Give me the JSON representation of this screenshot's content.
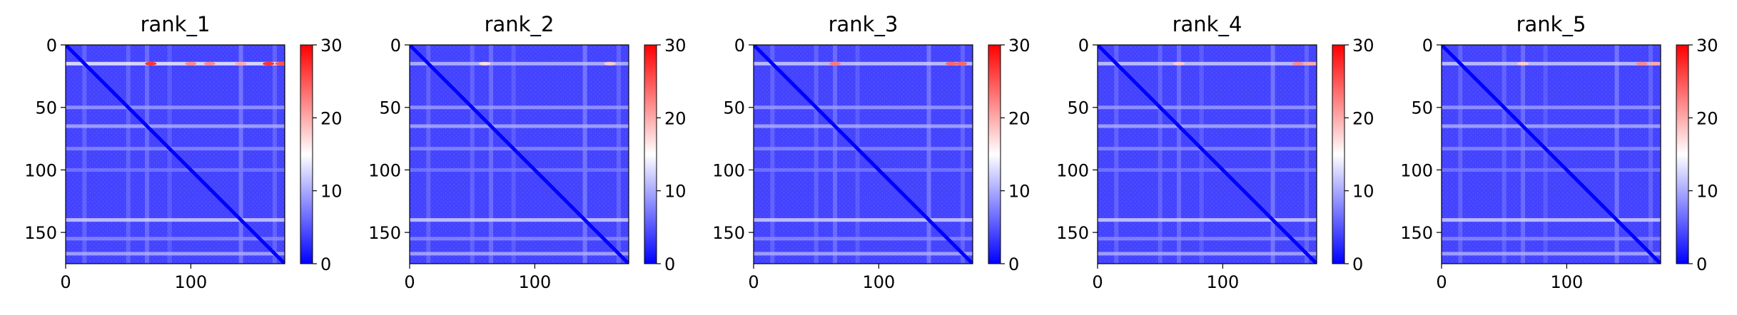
{
  "figure": {
    "colormap": {
      "low": "#0000ff",
      "mid": "#ffffff",
      "high": "#ff0000"
    }
  },
  "chart_data": [
    {
      "type": "heatmap",
      "title": "rank_1",
      "xlabel": "",
      "ylabel": "",
      "xlim": [
        0,
        175
      ],
      "ylim": [
        175,
        0
      ],
      "xticks": [
        0,
        100
      ],
      "yticks": [
        0,
        50,
        100,
        150
      ],
      "colorbar": {
        "range": [
          0,
          30
        ],
        "ticks": [
          0,
          10,
          20,
          30
        ]
      },
      "diagonal_value": 0,
      "background_value": 4,
      "row_bands": [
        {
          "y": 15,
          "value": 14
        },
        {
          "y": 50,
          "value": 9
        },
        {
          "y": 65,
          "value": 10
        },
        {
          "y": 83,
          "value": 8
        },
        {
          "y": 100,
          "value": 7
        },
        {
          "y": 140,
          "value": 12
        },
        {
          "y": 155,
          "value": 8
        },
        {
          "y": 167,
          "value": 10
        }
      ],
      "col_bands": [
        {
          "x": 15,
          "value": 8
        },
        {
          "x": 50,
          "value": 8
        },
        {
          "x": 65,
          "value": 9
        },
        {
          "x": 83,
          "value": 7
        },
        {
          "x": 140,
          "value": 10
        },
        {
          "x": 167,
          "value": 8
        }
      ],
      "hotspots": [
        {
          "x": 68,
          "y": 15,
          "value": 27
        },
        {
          "x": 100,
          "y": 15,
          "value": 22
        },
        {
          "x": 115,
          "y": 15,
          "value": 22
        },
        {
          "x": 140,
          "y": 15,
          "value": 20
        },
        {
          "x": 162,
          "y": 15,
          "value": 27
        },
        {
          "x": 172,
          "y": 15,
          "value": 25
        }
      ]
    },
    {
      "type": "heatmap",
      "title": "rank_2",
      "xlabel": "",
      "ylabel": "",
      "xlim": [
        0,
        175
      ],
      "ylim": [
        175,
        0
      ],
      "xticks": [
        0,
        100
      ],
      "yticks": [
        0,
        50,
        100,
        150
      ],
      "colorbar": {
        "range": [
          0,
          30
        ],
        "ticks": [
          0,
          10,
          20,
          30
        ]
      },
      "diagonal_value": 0,
      "background_value": 4,
      "row_bands": [
        {
          "y": 15,
          "value": 11
        },
        {
          "y": 50,
          "value": 9
        },
        {
          "y": 65,
          "value": 10
        },
        {
          "y": 83,
          "value": 8
        },
        {
          "y": 100,
          "value": 7
        },
        {
          "y": 140,
          "value": 12
        },
        {
          "y": 155,
          "value": 8
        },
        {
          "y": 167,
          "value": 10
        }
      ],
      "col_bands": [
        {
          "x": 15,
          "value": 8
        },
        {
          "x": 50,
          "value": 8
        },
        {
          "x": 65,
          "value": 9
        },
        {
          "x": 83,
          "value": 7
        },
        {
          "x": 140,
          "value": 10
        },
        {
          "x": 167,
          "value": 8
        }
      ],
      "hotspots": [
        {
          "x": 60,
          "y": 15,
          "value": 17
        },
        {
          "x": 160,
          "y": 15,
          "value": 18
        }
      ]
    },
    {
      "type": "heatmap",
      "title": "rank_3",
      "xlabel": "",
      "ylabel": "",
      "xlim": [
        0,
        175
      ],
      "ylim": [
        175,
        0
      ],
      "xticks": [
        0,
        100
      ],
      "yticks": [
        0,
        50,
        100,
        150
      ],
      "colorbar": {
        "range": [
          0,
          30
        ],
        "ticks": [
          0,
          10,
          20,
          30
        ]
      },
      "diagonal_value": 0,
      "background_value": 4,
      "row_bands": [
        {
          "y": 15,
          "value": 12
        },
        {
          "y": 50,
          "value": 9
        },
        {
          "y": 65,
          "value": 10
        },
        {
          "y": 83,
          "value": 8
        },
        {
          "y": 100,
          "value": 7
        },
        {
          "y": 140,
          "value": 12
        },
        {
          "y": 155,
          "value": 8
        },
        {
          "y": 167,
          "value": 10
        }
      ],
      "col_bands": [
        {
          "x": 15,
          "value": 8
        },
        {
          "x": 50,
          "value": 8
        },
        {
          "x": 65,
          "value": 9
        },
        {
          "x": 83,
          "value": 7
        },
        {
          "x": 140,
          "value": 10
        },
        {
          "x": 167,
          "value": 8
        }
      ],
      "hotspots": [
        {
          "x": 65,
          "y": 15,
          "value": 23
        },
        {
          "x": 158,
          "y": 15,
          "value": 24
        },
        {
          "x": 166,
          "y": 15,
          "value": 24
        }
      ]
    },
    {
      "type": "heatmap",
      "title": "rank_4",
      "xlabel": "",
      "ylabel": "",
      "xlim": [
        0,
        175
      ],
      "ylim": [
        175,
        0
      ],
      "xticks": [
        0,
        100
      ],
      "yticks": [
        0,
        50,
        100,
        150
      ],
      "colorbar": {
        "range": [
          0,
          30
        ],
        "ticks": [
          0,
          10,
          20,
          30
        ]
      },
      "diagonal_value": 0,
      "background_value": 4,
      "row_bands": [
        {
          "y": 15,
          "value": 12
        },
        {
          "y": 50,
          "value": 9
        },
        {
          "y": 65,
          "value": 10
        },
        {
          "y": 83,
          "value": 8
        },
        {
          "y": 100,
          "value": 7
        },
        {
          "y": 140,
          "value": 12
        },
        {
          "y": 155,
          "value": 8
        },
        {
          "y": 167,
          "value": 10
        }
      ],
      "col_bands": [
        {
          "x": 15,
          "value": 8
        },
        {
          "x": 50,
          "value": 8
        },
        {
          "x": 65,
          "value": 9
        },
        {
          "x": 83,
          "value": 7
        },
        {
          "x": 140,
          "value": 10
        },
        {
          "x": 167,
          "value": 8
        }
      ],
      "hotspots": [
        {
          "x": 65,
          "y": 15,
          "value": 18
        },
        {
          "x": 160,
          "y": 15,
          "value": 22
        },
        {
          "x": 170,
          "y": 15,
          "value": 20
        }
      ]
    },
    {
      "type": "heatmap",
      "title": "rank_5",
      "xlabel": "",
      "ylabel": "",
      "xlim": [
        0,
        175
      ],
      "ylim": [
        175,
        0
      ],
      "xticks": [
        0,
        100
      ],
      "yticks": [
        0,
        50,
        100,
        150
      ],
      "colorbar": {
        "range": [
          0,
          30
        ],
        "ticks": [
          0,
          10,
          20,
          30
        ]
      },
      "diagonal_value": 0,
      "background_value": 4,
      "row_bands": [
        {
          "y": 15,
          "value": 12
        },
        {
          "y": 50,
          "value": 9
        },
        {
          "y": 65,
          "value": 10
        },
        {
          "y": 83,
          "value": 8
        },
        {
          "y": 100,
          "value": 7
        },
        {
          "y": 140,
          "value": 12
        },
        {
          "y": 155,
          "value": 8
        },
        {
          "y": 167,
          "value": 10
        }
      ],
      "col_bands": [
        {
          "x": 15,
          "value": 8
        },
        {
          "x": 50,
          "value": 8
        },
        {
          "x": 65,
          "value": 9
        },
        {
          "x": 83,
          "value": 7
        },
        {
          "x": 140,
          "value": 10
        },
        {
          "x": 167,
          "value": 8
        }
      ],
      "hotspots": [
        {
          "x": 65,
          "y": 15,
          "value": 18
        },
        {
          "x": 160,
          "y": 15,
          "value": 22
        },
        {
          "x": 170,
          "y": 15,
          "value": 20
        }
      ]
    }
  ]
}
